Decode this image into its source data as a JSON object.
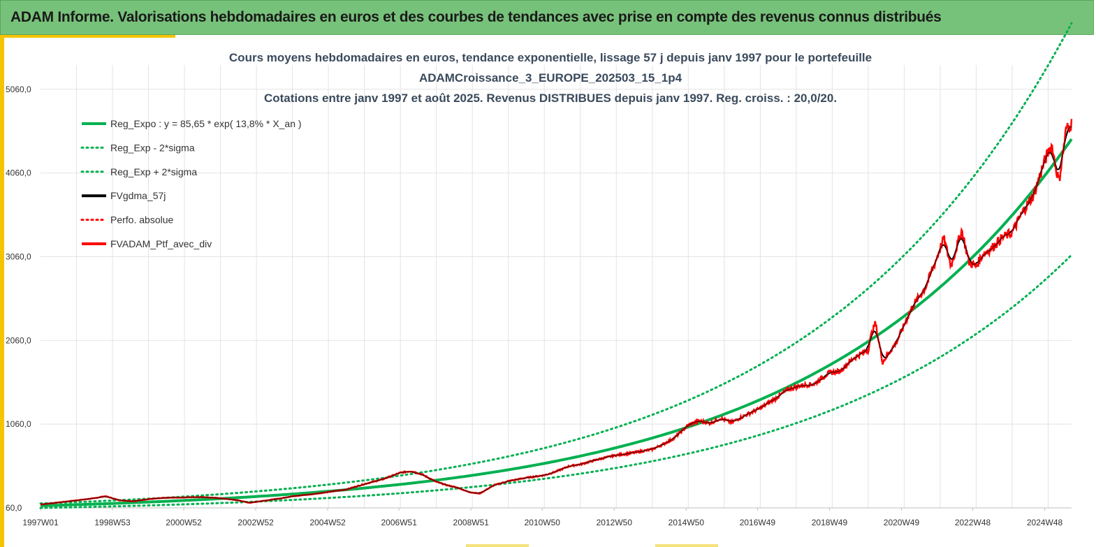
{
  "header": {
    "title": "ADAM Informe. Valorisations hebdomadaires en euros et des courbes de tendances avec prise en compte des revenus connus distribués"
  },
  "chart_data": {
    "type": "line",
    "title": [
      "Cours moyens hebdomadaires  en euros, tendance exponentielle, lissage 57 j depuis janv 1997 pour le portefeuille",
      "ADAMCroissance_3_EUROPE_202503_15_1p4",
      "Cotations  entre janv 1997 et août  2025. Revenus DISTRIBUES depuis janv 1997. Reg. croiss. : 20,0/20."
    ],
    "xlabel": "",
    "ylabel": "",
    "x_ticks": [
      "1997W01",
      "1998W53",
      "2000W52",
      "2002W52",
      "2004W52",
      "2006W51",
      "2008W51",
      "2010W50",
      "2012W50",
      "2014W50",
      "2016W49",
      "2018W49",
      "2020W49",
      "2022W48",
      "2024W48"
    ],
    "x_range_years": [
      1997.0,
      2025.65
    ],
    "y_ticks": [
      "60,0",
      "1060,0",
      "2060,0",
      "3060,0",
      "4060,0",
      "5060,0"
    ],
    "ylim": [
      60,
      5350
    ],
    "grid": true,
    "legend_position": "top-left",
    "regression": {
      "a": 85.65,
      "rate": 0.138,
      "sigma_factor": 0.31
    },
    "series": [
      {
        "name": "Reg_Expo : y = 85,65 * exp( 13,8% *  X_an )",
        "color": "#00b050",
        "style": "solid",
        "kind": "reg"
      },
      {
        "name": "Reg_Exp - 2*sigma",
        "color": "#00b050",
        "style": "dotted",
        "kind": "reg_low"
      },
      {
        "name": "Reg_Exp + 2*sigma",
        "color": "#00b050",
        "style": "dotted",
        "kind": "reg_high"
      },
      {
        "name": "FVgdma_57j",
        "color": "#000000",
        "style": "solid",
        "kind": "smooth"
      },
      {
        "name": "Perfo. absolue",
        "color": "#ff0000",
        "style": "dotted",
        "kind": "none"
      },
      {
        "name": "FVADAM_Ptf_avec_div",
        "color": "#ff0000",
        "style": "solid",
        "kind": "actual"
      }
    ],
    "actual_points": {
      "x": [
        1997.0,
        1997.5,
        1998.0,
        1998.5,
        1998.8,
        1999.2,
        1999.6,
        2000.0,
        2000.5,
        2001.0,
        2001.5,
        2002.0,
        2002.5,
        2002.8,
        2003.2,
        2003.7,
        2004.0,
        2004.5,
        2005.0,
        2005.5,
        2006.0,
        2006.5,
        2007.0,
        2007.3,
        2007.6,
        2008.0,
        2008.3,
        2008.6,
        2008.9,
        2009.2,
        2009.6,
        2010.0,
        2010.5,
        2011.0,
        2011.3,
        2011.7,
        2012.0,
        2012.5,
        2013.0,
        2013.5,
        2014.0,
        2014.3,
        2014.6,
        2015.0,
        2015.3,
        2015.6,
        2015.9,
        2016.2,
        2016.6,
        2017.0,
        2017.4,
        2017.8,
        2018.1,
        2018.5,
        2018.9,
        2019.2,
        2019.6,
        2020.0,
        2020.1,
        2020.2,
        2020.4,
        2020.8,
        2021.2,
        2021.6,
        2021.9,
        2022.1,
        2022.3,
        2022.6,
        2022.8,
        2023.0,
        2023.2,
        2023.4,
        2023.7,
        2024.0,
        2024.3,
        2024.6,
        2024.9,
        2025.1,
        2025.2,
        2025.3,
        2025.5,
        2025.65
      ],
      "y": [
        100,
        125,
        150,
        175,
        200,
        150,
        140,
        165,
        180,
        185,
        190,
        175,
        150,
        120,
        145,
        175,
        200,
        220,
        250,
        280,
        345,
        400,
        480,
        500,
        460,
        370,
        330,
        300,
        250,
        230,
        330,
        380,
        420,
        450,
        490,
        560,
        580,
        640,
        690,
        720,
        760,
        820,
        890,
        1050,
        1100,
        1070,
        1130,
        1080,
        1170,
        1250,
        1360,
        1480,
        1520,
        1540,
        1670,
        1690,
        1850,
        1950,
        2150,
        2270,
        1800,
        2050,
        2440,
        2700,
        3040,
        3280,
        2950,
        3380,
        2990,
        2950,
        3100,
        3150,
        3280,
        3350,
        3600,
        3800,
        4200,
        4400,
        4150,
        3960,
        4580,
        4650
      ]
    }
  }
}
